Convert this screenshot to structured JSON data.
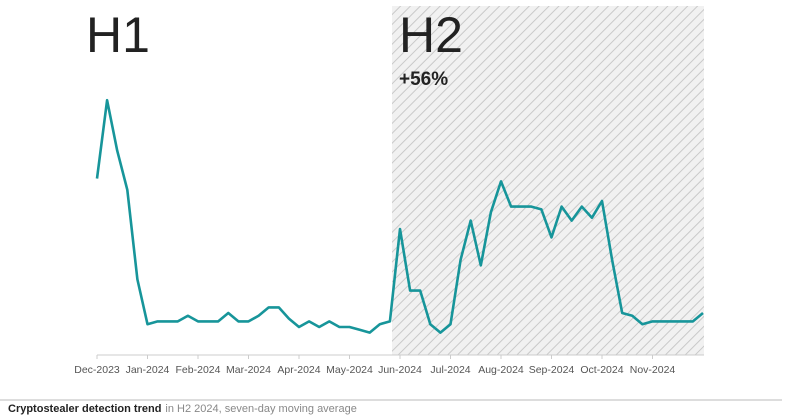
{
  "chart_data": {
    "type": "line",
    "title": "Cryptostealer detection trend",
    "subtitle": "in H2 2024, seven-day moving average",
    "annotations": [
      "H1",
      "H2",
      "+56%"
    ],
    "categories": [
      "Dec-2023",
      null,
      null,
      null,
      null,
      "Jan-2024",
      null,
      null,
      null,
      null,
      "Feb-2024",
      null,
      null,
      null,
      null,
      "Mar-2024",
      null,
      null,
      null,
      null,
      "Apr-2024",
      null,
      null,
      null,
      null,
      "May-2024",
      null,
      null,
      null,
      null,
      "Jun-2024",
      null,
      null,
      null,
      null,
      "Jul-2024",
      null,
      null,
      null,
      null,
      "Aug-2024",
      null,
      null,
      null,
      null,
      "Sep-2024",
      null,
      null,
      null,
      null,
      "Oct-2024",
      null,
      null,
      null,
      null,
      "Nov-2024",
      null,
      null,
      null,
      null,
      null
    ],
    "series": [
      {
        "color": "#17959a",
        "values": [
          63,
          91,
          73,
          59,
          27,
          11,
          12,
          12,
          12,
          14,
          12,
          12,
          12,
          15,
          12,
          12,
          14,
          17,
          17,
          13,
          10,
          12,
          10,
          12,
          10,
          10,
          9,
          8,
          11,
          12,
          45,
          23,
          23,
          11,
          8,
          11,
          34,
          48,
          32,
          51,
          62,
          53,
          53,
          53,
          52,
          42,
          53,
          48,
          53,
          49,
          55,
          34,
          15,
          14,
          11,
          12,
          12,
          12,
          12,
          12,
          15
        ]
      }
    ],
    "ylim": [
      0,
      100
    ]
  }
}
